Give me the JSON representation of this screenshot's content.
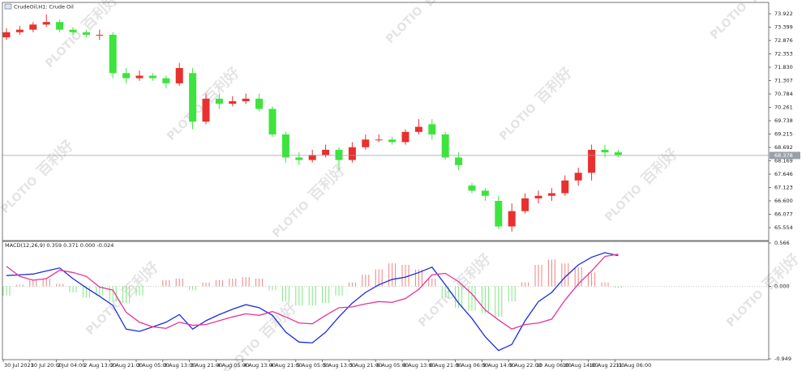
{
  "watermark": {
    "brand": "PLOTIO",
    "text": "百利好"
  },
  "chart_data": [
    {
      "type": "candlestick",
      "title": "CrudeOil,H1: Crude Oil",
      "up_color": "#e8302f",
      "down_color": "#3ee33e",
      "open": [
        73.0,
        73.2,
        73.3,
        73.5,
        73.6,
        73.3,
        73.2,
        73.1,
        73.1,
        71.6,
        71.4,
        71.5,
        71.4,
        71.2,
        71.6,
        69.7,
        70.6,
        70.4,
        70.5,
        70.6,
        70.2,
        69.2,
        68.3,
        68.2,
        68.4,
        68.6,
        68.2,
        68.7,
        69.0,
        69.0,
        68.9,
        69.3,
        69.6,
        69.2,
        68.3,
        67.2,
        67.0,
        66.6,
        65.6,
        66.2,
        66.7,
        66.8,
        66.9,
        67.4,
        67.7,
        68.6,
        68.5
      ],
      "high": [
        73.35,
        73.45,
        73.6,
        73.9,
        73.7,
        73.4,
        73.3,
        73.3,
        73.2,
        71.8,
        71.7,
        71.6,
        71.5,
        72.0,
        71.8,
        70.8,
        70.8,
        70.7,
        70.8,
        70.8,
        70.3,
        69.3,
        68.5,
        68.6,
        68.8,
        68.7,
        68.9,
        69.2,
        69.2,
        69.1,
        69.4,
        69.8,
        69.8,
        69.3,
        68.5,
        67.3,
        67.1,
        66.8,
        66.5,
        66.9,
        67.0,
        67.1,
        67.6,
        67.9,
        68.8,
        68.8,
        68.6
      ],
      "low": [
        72.9,
        73.1,
        73.2,
        73.4,
        73.2,
        73.1,
        73.0,
        72.9,
        71.4,
        71.2,
        71.3,
        71.3,
        71.0,
        71.1,
        69.4,
        69.6,
        70.2,
        70.3,
        70.4,
        70.1,
        69.1,
        68.1,
        68.0,
        68.1,
        68.3,
        67.8,
        68.1,
        68.6,
        68.9,
        68.8,
        68.8,
        69.2,
        69.0,
        68.2,
        67.8,
        66.9,
        66.6,
        65.5,
        65.4,
        66.1,
        66.5,
        66.6,
        66.8,
        67.2,
        67.4,
        68.3,
        68.3
      ],
      "close": [
        73.2,
        73.3,
        73.5,
        73.6,
        73.3,
        73.2,
        73.1,
        73.1,
        71.6,
        71.4,
        71.5,
        71.4,
        71.2,
        71.8,
        69.7,
        70.6,
        70.4,
        70.5,
        70.6,
        70.2,
        69.2,
        68.3,
        68.2,
        68.4,
        68.6,
        68.2,
        68.7,
        69.0,
        69.0,
        68.9,
        69.3,
        69.5,
        69.2,
        68.3,
        68.0,
        67.0,
        66.8,
        65.6,
        66.2,
        66.7,
        66.8,
        66.9,
        67.4,
        67.7,
        68.6,
        68.5,
        68.4
      ],
      "current_price": 68.378,
      "ylim": [
        65.047,
        74.366
      ],
      "yticks": [
        73.922,
        73.399,
        72.876,
        72.353,
        {
          "value": 71.83,
          "label": "71.830"
        },
        71.307,
        70.784,
        70.261,
        69.738,
        69.215,
        68.692,
        68.169,
        67.646,
        67.123,
        {
          "value": 66.6,
          "label": "66.600"
        },
        66.077,
        65.554
      ],
      "x_labels": [
        "30 Jul 2021",
        "30 Jul 20:00",
        "2 Jul 04:00",
        "2 Aug 13:00",
        "2 Aug 21:00",
        "3 Aug 05:00",
        "3 Aug 13:00",
        "3 Aug 21:00",
        "4 Aug 05:00",
        "4 Aug 13:00",
        "4 Aug 21:00",
        "5 Aug 05:00",
        "5 Aug 13:00",
        "5 Aug 21:00",
        "6 Aug 05:00",
        "6 Aug 13:00",
        "6 Aug 21:00",
        "9 Aug 06:00",
        "9 Aug 14:00",
        "9 Aug 22:00",
        "10 Aug 06:00",
        "10 Aug 14:00",
        "10 Aug 22:00",
        "11 Aug 06:00"
      ]
    },
    {
      "type": "macd",
      "title": "MACD(12,26,9) 0.359 0.371 0.000 -0.024",
      "histogram": [
        -0.12,
        0.02,
        0.08,
        0.1,
        0.03,
        -0.08,
        -0.15,
        -0.12,
        -0.2,
        -0.22,
        -0.12,
        0.0,
        0.08,
        0.1,
        -0.05,
        0.05,
        0.08,
        0.1,
        0.12,
        0.1,
        -0.05,
        -0.2,
        -0.25,
        -0.25,
        -0.22,
        -0.12,
        0.05,
        0.15,
        0.22,
        0.3,
        0.28,
        0.22,
        0.1,
        -0.15,
        -0.28,
        -0.32,
        -0.35,
        -0.4,
        -0.2,
        0.05,
        0.28,
        0.35,
        0.3,
        0.25,
        0.18,
        0.05,
        -0.02
      ],
      "hist_up_color": "#f08080",
      "hist_down_color": "#7ee87e",
      "series": [
        {
          "color": "#1a2ee0",
          "values": [
            0.14,
            0.15,
            0.16,
            0.2,
            0.24,
            0.1,
            -0.02,
            -0.13,
            -0.25,
            -0.56,
            -0.59,
            -0.53,
            -0.47,
            -0.37,
            -0.56,
            -0.45,
            -0.37,
            -0.3,
            -0.24,
            -0.28,
            -0.38,
            -0.6,
            -0.73,
            -0.74,
            -0.6,
            -0.4,
            -0.22,
            -0.08,
            0.02,
            0.09,
            0.12,
            0.18,
            0.25,
            0.02,
            -0.22,
            -0.42,
            -0.66,
            -0.84,
            -0.76,
            -0.45,
            -0.2,
            -0.08,
            0.12,
            0.28,
            0.38,
            0.44,
            0.4
          ]
        },
        {
          "color": "#e8339a",
          "values": [
            0.26,
            0.13,
            0.08,
            0.1,
            0.21,
            0.18,
            0.13,
            -0.01,
            -0.05,
            -0.34,
            -0.47,
            -0.53,
            -0.55,
            -0.47,
            -0.51,
            -0.5,
            -0.45,
            -0.4,
            -0.36,
            -0.38,
            -0.33,
            -0.4,
            -0.48,
            -0.49,
            -0.38,
            -0.28,
            -0.27,
            -0.23,
            -0.2,
            -0.21,
            -0.16,
            -0.04,
            0.15,
            0.17,
            0.06,
            -0.1,
            -0.31,
            -0.44,
            -0.56,
            -0.5,
            -0.48,
            -0.43,
            -0.18,
            0.03,
            0.2,
            0.39,
            0.42
          ]
        }
      ],
      "ylim": [
        -0.949,
        0.566
      ],
      "yticks": [
        0.566,
        {
          "value": 0,
          "label": "0.000"
        },
        -0.949
      ]
    }
  ]
}
